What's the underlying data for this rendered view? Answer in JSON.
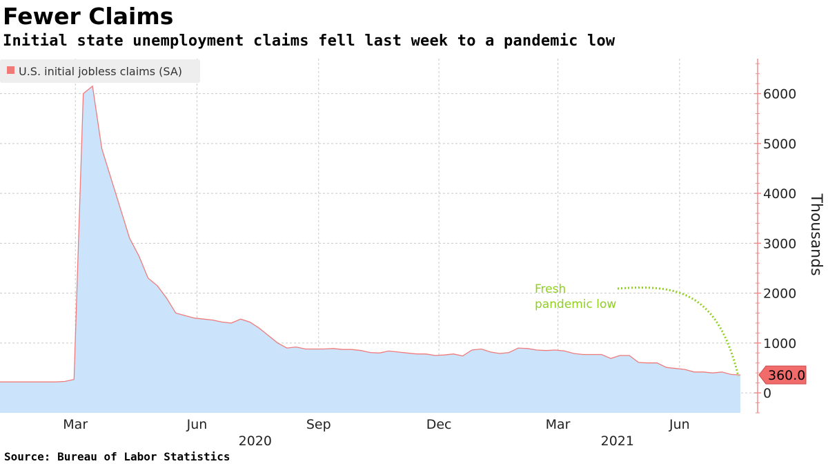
{
  "header": {
    "title": "Fewer Claims",
    "subtitle": "Initial state unemployment claims fell last week to a pandemic low"
  },
  "footer": {
    "source": "Source: Bureau of Labor Statistics"
  },
  "colors": {
    "area_fill": "#cce4fb",
    "line": "#f07a7a",
    "axis": "#f28c8c",
    "grid": "#c8c8c8",
    "annotation": "#8fcf1f",
    "last_value_badge": "#f26b6b",
    "legend_bg": "#eeeeee"
  },
  "chart_data": {
    "type": "area",
    "title": "Fewer Claims",
    "subtitle": "Initial state unemployment claims fell last week to a pandemic low",
    "ylabel": "Thousands",
    "ylim": [
      -400,
      6700
    ],
    "yticks": [
      0,
      1000,
      2000,
      3000,
      4000,
      5000,
      6000
    ],
    "y_axis_side": "right",
    "grid": true,
    "legend": {
      "placement": "top-left",
      "entries": [
        "U.S. initial jobless claims (SA)"
      ]
    },
    "x_range": [
      "2020-01-04",
      "2021-07-17"
    ],
    "x_month_ticks": [
      {
        "label": "Mar",
        "date": "2020-03-01"
      },
      {
        "label": "Jun",
        "date": "2020-06-01"
      },
      {
        "label": "Sep",
        "date": "2020-09-01"
      },
      {
        "label": "Dec",
        "date": "2020-12-01"
      },
      {
        "label": "Mar",
        "date": "2021-03-01"
      },
      {
        "label": "Jun",
        "date": "2021-06-01"
      }
    ],
    "x_year_labels": [
      {
        "label": "2020",
        "date": "2020-07-15"
      },
      {
        "label": "2021",
        "date": "2021-04-15"
      }
    ],
    "series": [
      {
        "name": "U.S. initial jobless claims (SA)",
        "x": [
          "2020-01-04",
          "2020-01-11",
          "2020-01-18",
          "2020-01-25",
          "2020-02-01",
          "2020-02-08",
          "2020-02-15",
          "2020-02-22",
          "2020-02-29",
          "2020-03-07",
          "2020-03-14",
          "2020-03-21",
          "2020-03-28",
          "2020-04-04",
          "2020-04-11",
          "2020-04-18",
          "2020-04-25",
          "2020-05-02",
          "2020-05-09",
          "2020-05-16",
          "2020-05-23",
          "2020-05-30",
          "2020-06-06",
          "2020-06-13",
          "2020-06-20",
          "2020-06-27",
          "2020-07-04",
          "2020-07-11",
          "2020-07-18",
          "2020-07-25",
          "2020-08-01",
          "2020-08-08",
          "2020-08-15",
          "2020-08-22",
          "2020-08-29",
          "2020-09-05",
          "2020-09-12",
          "2020-09-19",
          "2020-09-26",
          "2020-10-03",
          "2020-10-10",
          "2020-10-17",
          "2020-10-24",
          "2020-10-31",
          "2020-11-07",
          "2020-11-14",
          "2020-11-21",
          "2020-11-28",
          "2020-12-05",
          "2020-12-12",
          "2020-12-19",
          "2020-12-26",
          "2021-01-02",
          "2021-01-09",
          "2021-01-16",
          "2021-01-23",
          "2021-01-30",
          "2021-02-06",
          "2021-02-13",
          "2021-02-20",
          "2021-02-27",
          "2021-03-06",
          "2021-03-13",
          "2021-03-20",
          "2021-03-27",
          "2021-04-03",
          "2021-04-10",
          "2021-04-17",
          "2021-04-24",
          "2021-05-01",
          "2021-05-08",
          "2021-05-15",
          "2021-05-22",
          "2021-05-29",
          "2021-06-05",
          "2021-06-12",
          "2021-06-19",
          "2021-06-26",
          "2021-07-03",
          "2021-07-10",
          "2021-07-17"
        ],
        "y": [
          220,
          220,
          220,
          220,
          220,
          220,
          220,
          230,
          270,
          6000,
          6150,
          4900,
          4300,
          3700,
          3100,
          2750,
          2300,
          2150,
          1900,
          1600,
          1550,
          1500,
          1480,
          1460,
          1420,
          1400,
          1480,
          1420,
          1300,
          1150,
          1000,
          900,
          920,
          880,
          880,
          880,
          890,
          870,
          870,
          850,
          810,
          800,
          840,
          820,
          800,
          780,
          780,
          750,
          760,
          780,
          740,
          860,
          880,
          820,
          790,
          810,
          900,
          890,
          860,
          850,
          860,
          840,
          790,
          770,
          770,
          770,
          690,
          750,
          750,
          610,
          600,
          600,
          510,
          490,
          470,
          420,
          420,
          400,
          420,
          370,
          360
        ]
      }
    ],
    "last_value_label": "360.0",
    "annotations": [
      {
        "text_lines": [
          "Fresh",
          "pandemic low"
        ],
        "points_to": "2021-07-17"
      }
    ]
  }
}
